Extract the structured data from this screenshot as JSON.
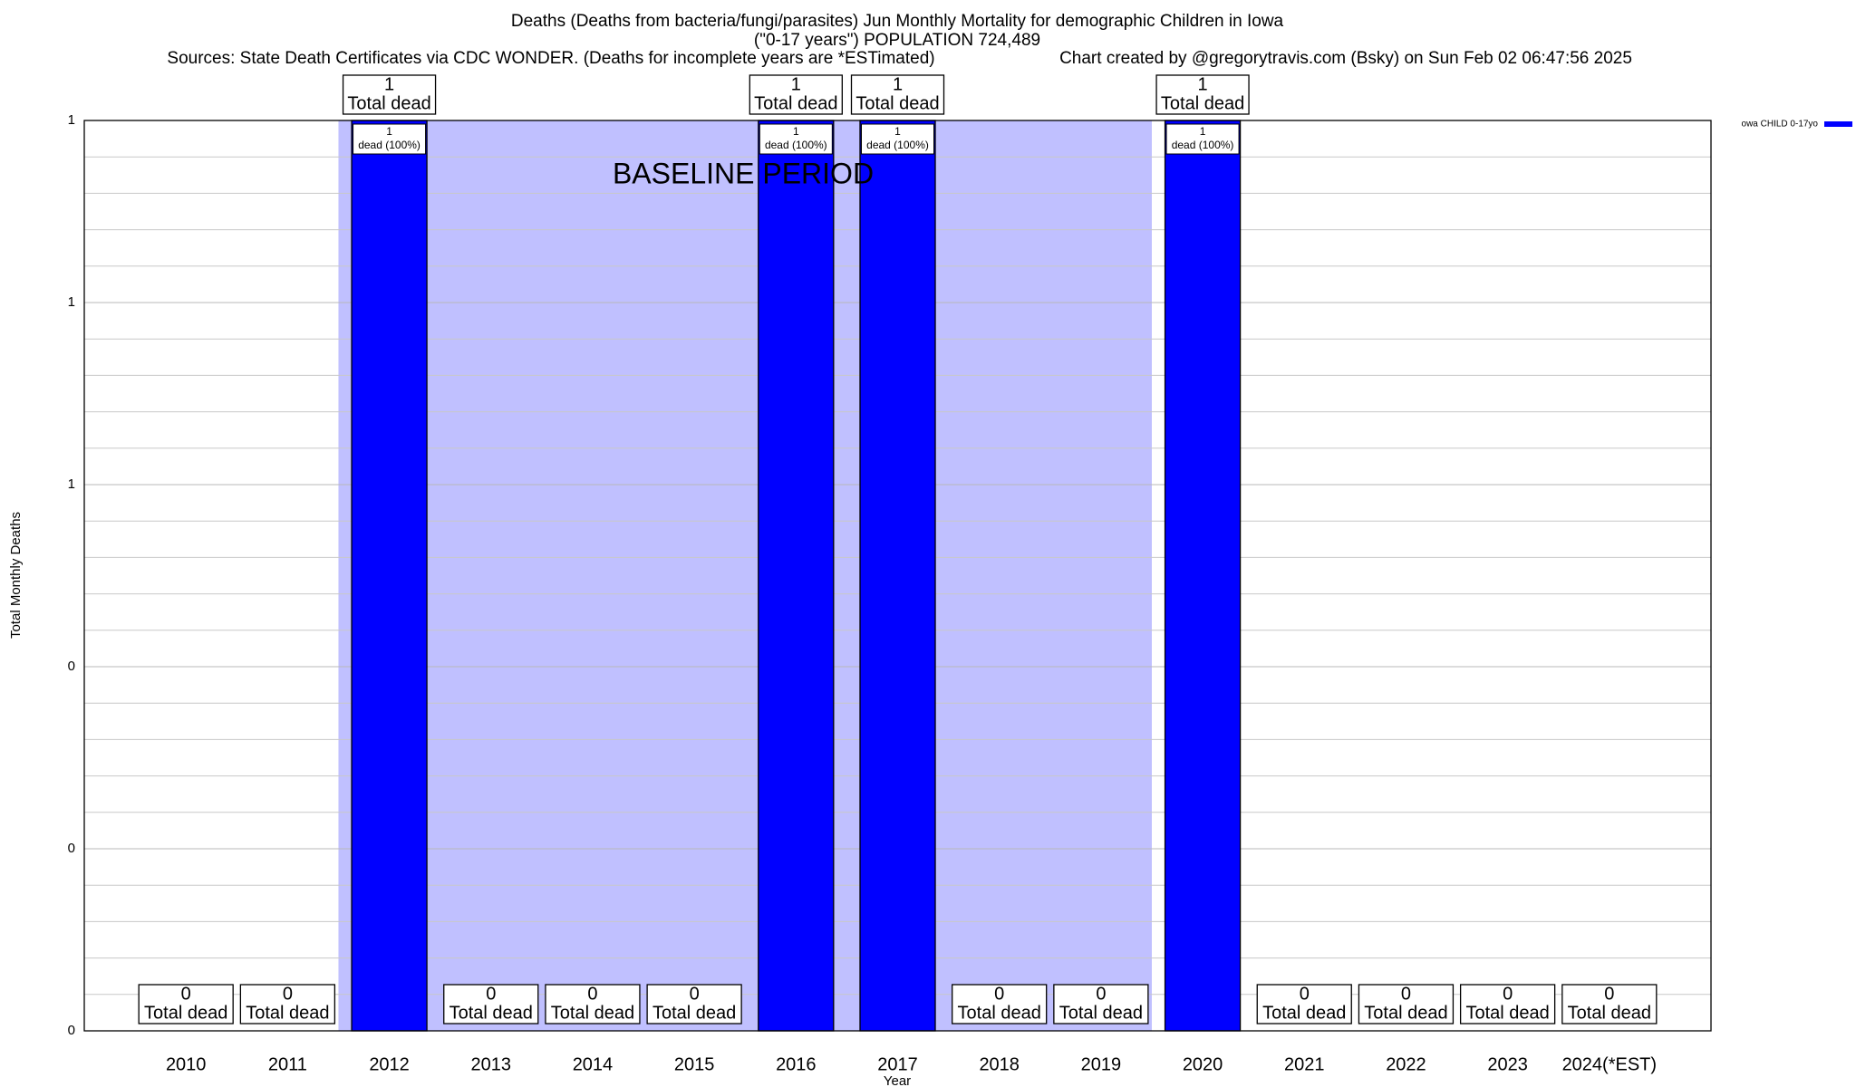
{
  "chart_data": {
    "type": "bar",
    "title": "Deaths (Deaths from bacteria/fungi/parasites) Jun Monthly Mortality for demographic Children in Iowa",
    "subtitle": "(\"0-17 years\") POPULATION 724,489",
    "sources": "Sources: State Death Certificates via CDC WONDER. (Deaths for incomplete years are *ESTimated)",
    "credit": "Chart created by @gregorytravis.com (Bsky) on Sun Feb 02 06:47:56 2025",
    "xlabel": "Year",
    "ylabel": "Total Monthly Deaths",
    "categories": [
      "2010",
      "2011",
      "2012",
      "2013",
      "2014",
      "2015",
      "2016",
      "2017",
      "2018",
      "2019",
      "2020",
      "2021",
      "2022",
      "2023",
      "2024(*EST)"
    ],
    "series": [
      {
        "name": "owa CHILD 0-17yo",
        "color": "#0000ff",
        "values": [
          0,
          0,
          1,
          0,
          0,
          0,
          1,
          1,
          0,
          0,
          1,
          0,
          0,
          0,
          0
        ]
      }
    ],
    "total_label": "Total dead",
    "share_label": "dead (100%)",
    "baseline": {
      "label": "BASELINE PERIOD",
      "start": "2012",
      "end": "2019",
      "color": "#c0c0ff"
    },
    "ylim": [
      0,
      1
    ],
    "yticks": [
      0,
      {
        "value": 0.2,
        "label": "0"
      },
      {
        "value": 0.4,
        "label": "0"
      },
      {
        "value": 0.6,
        "label": "1"
      },
      {
        "value": 0.8,
        "label": "1"
      },
      1
    ],
    "minor_ticks_per_interval": 5,
    "grid": true,
    "legend": "top-right"
  }
}
